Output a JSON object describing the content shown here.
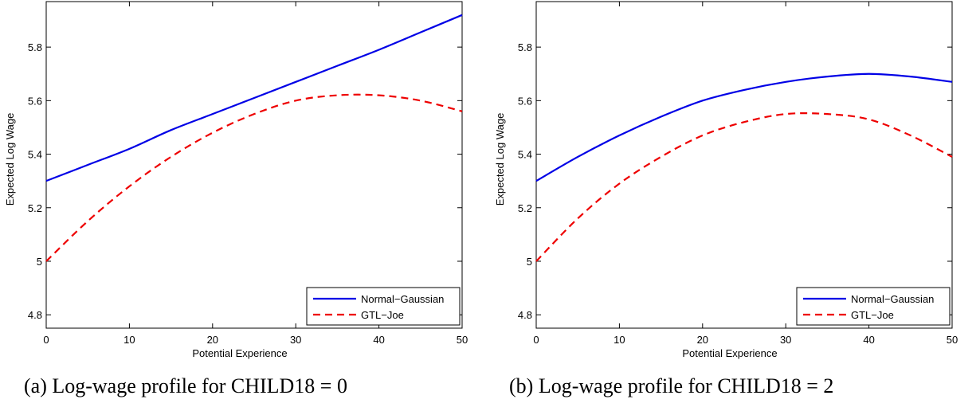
{
  "colors": {
    "normal_gaussian": "#0000e6",
    "gtl_joe": "#ee0000",
    "axes": "#000000"
  },
  "chart_data": [
    {
      "type": "line",
      "caption": "(a) Log-wage profile for CHILD18 = 0",
      "xlabel": "Potential Experience",
      "ylabel": "Expected Log Wage",
      "xlim": [
        0,
        50
      ],
      "ylim": [
        4.75,
        5.97
      ],
      "xticks": [
        "0",
        "10",
        "20",
        "30",
        "40",
        "50"
      ],
      "yticks": [
        "4.8",
        "5",
        "5.2",
        "5.4",
        "5.6",
        "5.8"
      ],
      "legend_position": "bottom-right",
      "series": [
        {
          "name": "Normal−Gaussian",
          "style": "solid",
          "x": [
            0,
            5,
            10,
            15,
            20,
            25,
            30,
            35,
            40,
            45,
            50
          ],
          "y": [
            5.3,
            5.36,
            5.42,
            5.49,
            5.55,
            5.61,
            5.67,
            5.73,
            5.79,
            5.855,
            5.92
          ]
        },
        {
          "name": "GTL−Joe",
          "style": "dashed",
          "x": [
            0,
            5,
            10,
            15,
            20,
            25,
            30,
            35,
            40,
            45,
            50
          ],
          "y": [
            5.0,
            5.15,
            5.28,
            5.39,
            5.48,
            5.55,
            5.6,
            5.62,
            5.62,
            5.6,
            5.56
          ]
        }
      ]
    },
    {
      "type": "line",
      "caption": "(b) Log-wage profile for CHILD18 = 2",
      "xlabel": "Potential Experience",
      "ylabel": "Expected Log Wage",
      "xlim": [
        0,
        50
      ],
      "ylim": [
        4.75,
        5.97
      ],
      "xticks": [
        "0",
        "10",
        "20",
        "30",
        "40",
        "50"
      ],
      "yticks": [
        "4.8",
        "5",
        "5.2",
        "5.4",
        "5.6",
        "5.8"
      ],
      "legend_position": "bottom-right",
      "series": [
        {
          "name": "Normal−Gaussian",
          "style": "solid",
          "x": [
            0,
            5,
            10,
            15,
            20,
            25,
            30,
            35,
            40,
            45,
            50
          ],
          "y": [
            5.3,
            5.39,
            5.47,
            5.54,
            5.6,
            5.64,
            5.67,
            5.69,
            5.7,
            5.69,
            5.67
          ]
        },
        {
          "name": "GTL−Joe",
          "style": "dashed",
          "x": [
            0,
            5,
            10,
            15,
            20,
            25,
            30,
            35,
            40,
            45,
            50
          ],
          "y": [
            5.0,
            5.16,
            5.29,
            5.39,
            5.47,
            5.52,
            5.55,
            5.55,
            5.53,
            5.47,
            5.39
          ]
        }
      ]
    }
  ]
}
